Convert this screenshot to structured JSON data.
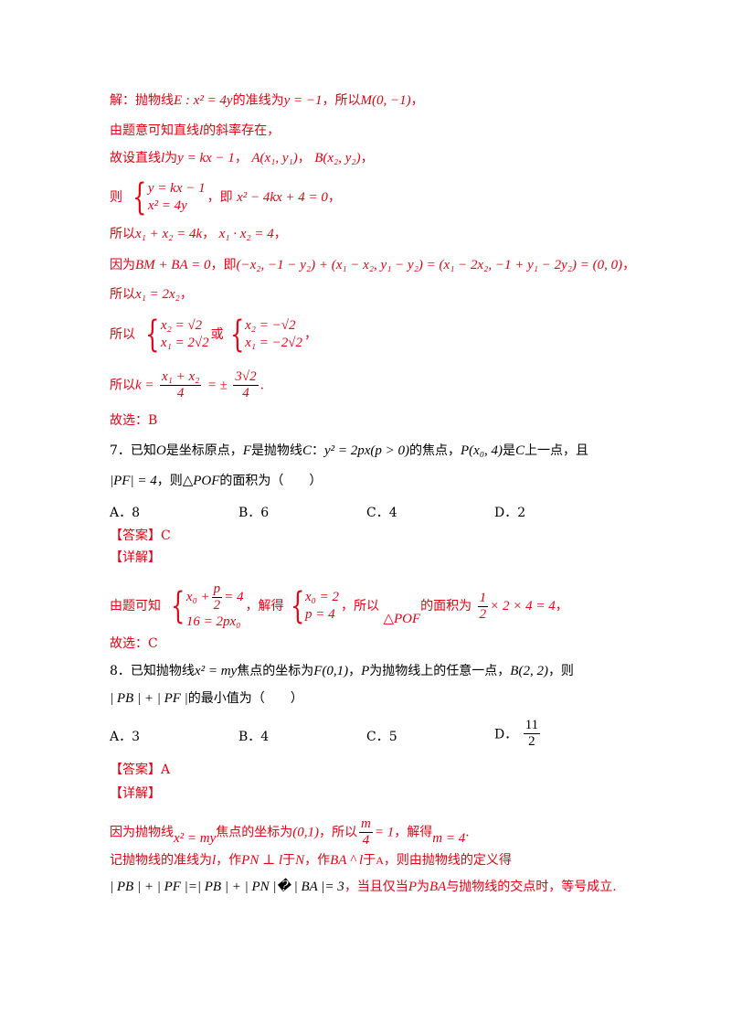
{
  "solution6": {
    "l1_a": "解：抛物线",
    "l1_m1": "E : x² = 4y",
    "l1_b": "的准线为",
    "l1_m2": "y = −1",
    "l1_c": "，所以",
    "l1_m3": "M(0, −1)",
    "l1_d": "，",
    "l2_a": "由题意可知直线",
    "l2_m1": "l",
    "l2_b": "的斜率存在，",
    "l3_a": "故设直线",
    "l3_m1": "l",
    "l3_b": "为",
    "l3_m2": "y = kx − 1",
    "l3_c": "，",
    "l3_m3": "A(x₁, y₁)",
    "l3_d": "，",
    "l3_m4": "B(x₂, y₂)",
    "l3_e": "，",
    "l4_a": "则",
    "l4_sys1": "y = kx − 1",
    "l4_sys2": "x² = 4y",
    "l4_b": "，即",
    "l4_m1": "x² − 4kx + 4 = 0",
    "l4_c": "，",
    "l5_a": "所以",
    "l5_m1": "x₁ + x₂ = 4k",
    "l5_b": "，",
    "l5_m2": "x₁ · x₂ = 4",
    "l5_c": "，",
    "l6_a": "因为",
    "l6_m1": "BM + BA = 0",
    "l6_b": "，即",
    "l6_m2": "(−x₂, −1 − y₂) + (x₁ − x₂, y₁ − y₂) = (x₁ − 2x₂, −1 + y₁ − 2y₂) = (0, 0)",
    "l6_c": "，",
    "l7_a": "所以",
    "l7_m1": "x₁ = 2x₂",
    "l7_b": "，",
    "l8_a": "所以",
    "l8_s1a": "x₂ = √2",
    "l8_s1b": "x₁ = 2√2",
    "l8_b": "或",
    "l8_s2a": "x₂ = −√2",
    "l8_s2b": "x₁ = −2√2",
    "l8_c": "，",
    "l9_a": "所以",
    "l9_m1": "k =",
    "l9_f1n": "x₁ + x₂",
    "l9_f1d": "4",
    "l9_m2": "= ±",
    "l9_f2n": "3√2",
    "l9_f2d": "4",
    "l9_b": ".",
    "l10": "故选：B"
  },
  "q7": {
    "l1_a": "7．已知",
    "l1_m1": "O",
    "l1_b": "是坐标原点，",
    "l1_m2": "F",
    "l1_c": "是抛物线",
    "l1_m3": "C",
    "l1_d": "：",
    "l1_m4": "y² = 2px(p > 0)",
    "l1_e": "的焦点，",
    "l1_m5": "P(x₀, 4)",
    "l1_f": "是",
    "l1_m6": "C",
    "l1_g": "上一点，且",
    "l2_m1": "|PF| = 4",
    "l2_a": "，则",
    "l2_m2": "△POF",
    "l2_b": "的面积为（　　）",
    "options": [
      "A．8",
      "B．6",
      "C．4",
      "D．2"
    ],
    "answer": "【答案】C",
    "detail": "【详解】",
    "d_a": "由题可知",
    "d_s1a": "x₀ + p/2 = 4",
    "d_s1a_x": "x₀ +",
    "d_s1a_fn": "p",
    "d_s1a_fd": "2",
    "d_s1a_r": "= 4",
    "d_s1b": "16 = 2px₀",
    "d_b": "，解得",
    "d_s2a": "x₀ = 2",
    "d_s2b": "p = 4",
    "d_c": "，所以",
    "d_m1": "△POF",
    "d_d": "的面积为",
    "d_fn": "1",
    "d_fd": "2",
    "d_m2": "× 2 × 4 = 4",
    "d_e": "，",
    "choose": "故选：C"
  },
  "q8": {
    "l1_a": "8．已知抛物线",
    "l1_m1": "x² = my",
    "l1_b": "焦点的坐标为",
    "l1_m2": "F(0,1)",
    "l1_c": "，",
    "l1_m3": "P",
    "l1_d": "为抛物线上的任意一点，",
    "l1_m4": "B(2, 2)",
    "l1_e": "，则",
    "l2_m1": "| PB | + | PF |",
    "l2_a": "的最小值为（　　）",
    "options": [
      "A．3",
      "B．4",
      "C．5",
      "D．"
    ],
    "opt_d_fn": "11",
    "opt_d_fd": "2",
    "answer": "【答案】A",
    "detail": "【详解】",
    "d1_a": "因为抛物线",
    "d1_m1": "x² = my",
    "d1_b": "焦点的坐标为",
    "d1_m2": "(0,1)",
    "d1_c": "，所以",
    "d1_fn": "m",
    "d1_fd": "4",
    "d1_m3": "= 1",
    "d1_d": "，解得",
    "d1_m4": "m = 4",
    "d1_e": ".",
    "d2_a": "记抛物线的准线为",
    "d2_m1": "l",
    "d2_b": "，作",
    "d2_m2": "PN ⊥ l",
    "d2_c": "于",
    "d2_m3": "N",
    "d2_d": "，作",
    "d2_m4": "BA ^ l",
    "d2_e": "于",
    "d2_m5": "A",
    "d2_f": "，则由抛物线的定义得",
    "d3_m1": "| PB | + | PF |=| PB | + | PN |� | BA |= 3",
    "d3_a": "，当且仅当",
    "d3_m2": "P",
    "d3_b": "为",
    "d3_m3": "BA",
    "d3_c": "与抛物线的交点时，等号成立."
  }
}
